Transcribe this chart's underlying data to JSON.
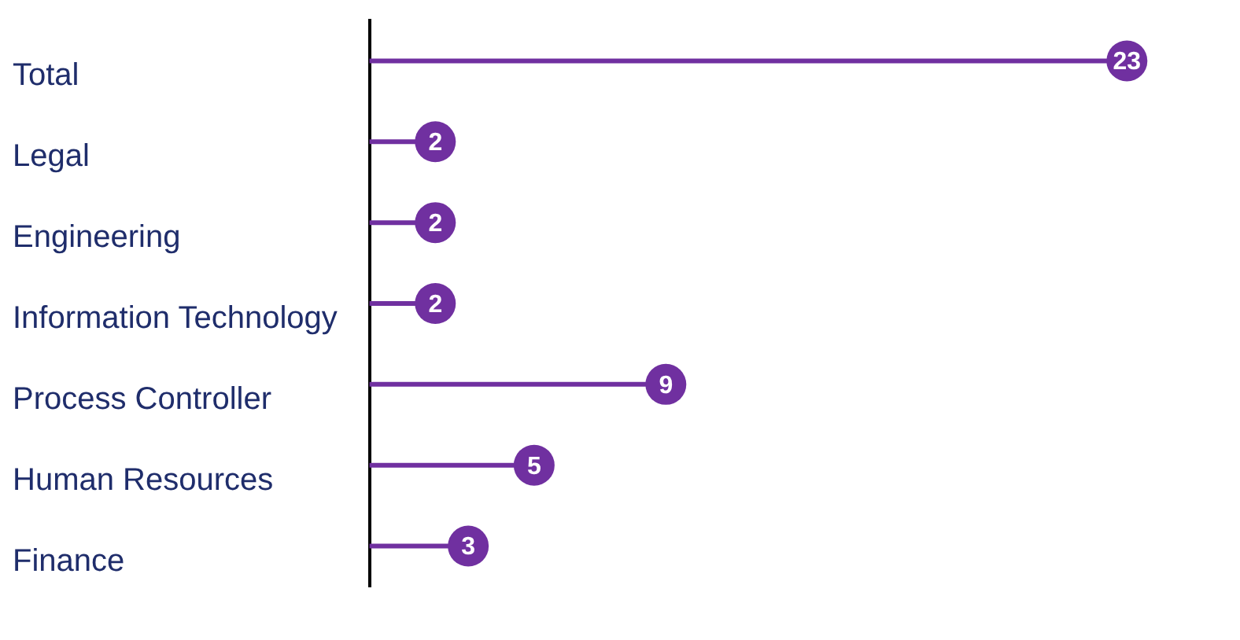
{
  "chart_data": {
    "type": "lollipop",
    "orientation": "horizontal",
    "categories": [
      "Total",
      "Legal",
      "Engineering",
      "Information Technology",
      "Process Controller",
      "Human Resources",
      "Finance"
    ],
    "values": [
      23,
      2,
      2,
      2,
      9,
      5,
      3
    ],
    "color": "#7030a0",
    "data_labels": true
  }
}
